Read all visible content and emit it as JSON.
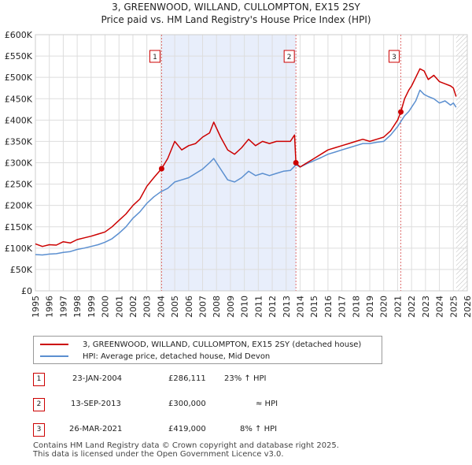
{
  "title_line1": "3, GREENWOOD, WILLAND, CULLOMPTON, EX15 2SY",
  "title_line2": "Price paid vs. HM Land Registry's House Price Index (HPI)",
  "legend": {
    "property_label": "3, GREENWOOD, WILLAND, CULLOMPTON, EX15 2SY (detached house)",
    "hpi_label": "HPI: Average price, detached house, Mid Devon",
    "property_color": "#cc0000",
    "hpi_color": "#5b8fd0"
  },
  "transactions": [
    {
      "marker": "1",
      "date": "23-JAN-2004",
      "price": "£286,111",
      "hpi_change": "23% ↑ HPI"
    },
    {
      "marker": "2",
      "date": "13-SEP-2013",
      "price": "£300,000",
      "hpi_change": "≈ HPI"
    },
    {
      "marker": "3",
      "date": "26-MAR-2021",
      "price": "£419,000",
      "hpi_change": "8% ↑ HPI"
    }
  ],
  "footer_line1": "Contains HM Land Registry data © Crown copyright and database right 2025.",
  "footer_line2": "This data is licensed under the Open Government Licence v3.0.",
  "chart_data": {
    "type": "line",
    "xlim": [
      1995,
      2026
    ],
    "ylim": [
      0,
      600000
    ],
    "y_ticks": [
      0,
      50000,
      100000,
      150000,
      200000,
      250000,
      300000,
      350000,
      400000,
      450000,
      500000,
      550000,
      600000
    ],
    "y_tick_labels": [
      "£0",
      "£50K",
      "£100K",
      "£150K",
      "£200K",
      "£250K",
      "£300K",
      "£350K",
      "£400K",
      "£450K",
      "£500K",
      "£550K",
      "£600K"
    ],
    "x_ticks": [
      1995,
      1996,
      1997,
      1998,
      1999,
      2000,
      2001,
      2002,
      2003,
      2004,
      2005,
      2006,
      2007,
      2008,
      2009,
      2010,
      2011,
      2012,
      2013,
      2014,
      2015,
      2016,
      2017,
      2018,
      2019,
      2020,
      2021,
      2022,
      2023,
      2024,
      2025,
      2026
    ],
    "x_tick_labels": [
      "1995",
      "1996",
      "1997",
      "1998",
      "1999",
      "2000",
      "2001",
      "2002",
      "2003",
      "2004",
      "2005",
      "2006",
      "2007",
      "2008",
      "2009",
      "2010",
      "2011",
      "2012",
      "2013",
      "2014",
      "2015",
      "2016",
      "2017",
      "2018",
      "2019",
      "2020",
      "2021",
      "2022",
      "2023",
      "2024",
      "2025",
      "2026"
    ],
    "grid": true,
    "shaded_period": [
      2004.06,
      2013.7
    ],
    "future_hatch_from": 2025.2,
    "sales": [
      {
        "marker": "1",
        "x": 2004.06,
        "y": 286111
      },
      {
        "marker": "2",
        "x": 2013.7,
        "y": 300000
      },
      {
        "marker": "3",
        "x": 2021.23,
        "y": 419000
      }
    ],
    "series": [
      {
        "name": "3, GREENWOOD, WILLAND, CULLOMPTON, EX15 2SY (detached house)",
        "color": "#cc0000",
        "x": [
          1995,
          1995.5,
          1996,
          1996.5,
          1997,
          1997.5,
          1998,
          1998.5,
          1999,
          1999.5,
          2000,
          2000.5,
          2001,
          2001.5,
          2002,
          2002.5,
          2003,
          2003.5,
          2004.06,
          2004.5,
          2005,
          2005.5,
          2006,
          2006.5,
          2007,
          2007.5,
          2007.8,
          2008.3,
          2008.8,
          2009.3,
          2009.8,
          2010.3,
          2010.8,
          2011.3,
          2011.8,
          2012.3,
          2012.8,
          2013.3,
          2013.6,
          2013.7,
          2014,
          2014.5,
          2015,
          2015.5,
          2016,
          2016.5,
          2017,
          2017.5,
          2018,
          2018.5,
          2019,
          2019.5,
          2020,
          2020.5,
          2021.0,
          2021.23,
          2021.5,
          2021.8,
          2022,
          2022.3,
          2022.6,
          2022.9,
          2023.2,
          2023.6,
          2024,
          2024.4,
          2024.8,
          2025.0,
          2025.2
        ],
        "y": [
          110000,
          104000,
          108000,
          107000,
          115000,
          112000,
          120000,
          124000,
          128000,
          133000,
          138000,
          150000,
          165000,
          180000,
          200000,
          215000,
          245000,
          265000,
          286111,
          310000,
          350000,
          330000,
          340000,
          345000,
          360000,
          370000,
          395000,
          360000,
          330000,
          320000,
          335000,
          355000,
          340000,
          350000,
          345000,
          350000,
          350000,
          350000,
          365000,
          300000,
          290000,
          300000,
          310000,
          320000,
          330000,
          335000,
          340000,
          345000,
          350000,
          355000,
          350000,
          355000,
          360000,
          375000,
          400000,
          419000,
          450000,
          470000,
          480000,
          500000,
          520000,
          515000,
          495000,
          505000,
          490000,
          485000,
          480000,
          475000,
          455000
        ]
      },
      {
        "name": "HPI: Average price, detached house, Mid Devon",
        "color": "#5b8fd0",
        "x": [
          1995,
          1995.5,
          1996,
          1996.5,
          1997,
          1997.5,
          1998,
          1998.5,
          1999,
          1999.5,
          2000,
          2000.5,
          2001,
          2001.5,
          2002,
          2002.5,
          2003,
          2003.5,
          2004,
          2004.5,
          2005,
          2005.5,
          2006,
          2006.5,
          2007,
          2007.5,
          2007.8,
          2008.3,
          2008.8,
          2009.3,
          2009.8,
          2010.3,
          2010.8,
          2011.3,
          2011.8,
          2012.3,
          2012.8,
          2013.3,
          2013.7,
          2014,
          2014.5,
          2015,
          2015.5,
          2016,
          2016.5,
          2017,
          2017.5,
          2018,
          2018.5,
          2019,
          2019.5,
          2020,
          2020.5,
          2021,
          2021.5,
          2021.8,
          2022,
          2022.3,
          2022.6,
          2022.9,
          2023.2,
          2023.6,
          2024,
          2024.4,
          2024.8,
          2025.0,
          2025.2
        ],
        "y": [
          85000,
          84000,
          86000,
          87000,
          90000,
          92000,
          97000,
          100000,
          104000,
          108000,
          114000,
          122000,
          135000,
          150000,
          170000,
          185000,
          205000,
          220000,
          232000,
          240000,
          255000,
          260000,
          265000,
          275000,
          285000,
          300000,
          310000,
          285000,
          260000,
          255000,
          265000,
          280000,
          270000,
          275000,
          270000,
          275000,
          280000,
          282000,
          295000,
          290000,
          298000,
          305000,
          312000,
          320000,
          325000,
          330000,
          335000,
          340000,
          345000,
          345000,
          348000,
          350000,
          365000,
          385000,
          410000,
          420000,
          430000,
          445000,
          470000,
          460000,
          455000,
          450000,
          440000,
          445000,
          435000,
          440000,
          430000
        ]
      }
    ]
  }
}
